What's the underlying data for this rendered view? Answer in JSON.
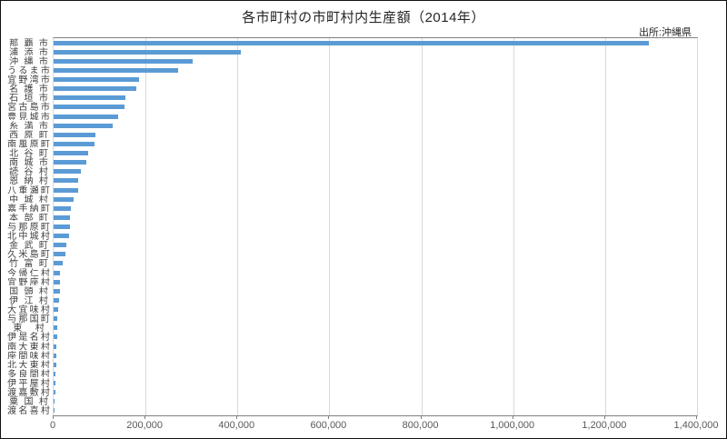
{
  "title": "各市町村の市町村内生産額（2014年）",
  "source_note": "出所:沖縄県",
  "colors": {
    "bar": "#5b9bd5",
    "gridline": "#d9d9d9",
    "axis_line": "#808080",
    "category_text": "#404040",
    "tick_text": "#595959",
    "title_text": "#262626"
  },
  "chart_data": {
    "type": "bar",
    "orientation": "horizontal",
    "title": "各市町村の市町村内生産額（2014年）",
    "xlabel": "",
    "ylabel": "",
    "xlim": [
      0,
      1400000
    ],
    "grid": "vertical-only",
    "legend": "none",
    "source": "出所:沖縄県",
    "x_ticks": [
      0,
      200000,
      400000,
      600000,
      800000,
      1000000,
      1200000,
      1400000
    ],
    "x_tick_labels": [
      "0",
      "200,000",
      "400,000",
      "600,000",
      "800,000",
      "1,000,000",
      "1,200,000",
      "1,400,000"
    ],
    "categories": [
      "那覇市",
      "浦添市",
      "沖縄市",
      "うるま市",
      "宜野湾市",
      "名護市",
      "石垣市",
      "宮古島市",
      "豊見城市",
      "糸満市",
      "西原町",
      "南風原町",
      "北谷町",
      "南城市",
      "読谷村",
      "恩納村",
      "八重瀬町",
      "中城村",
      "嘉手納町",
      "本部町",
      "与那原町",
      "北中城村",
      "金武町",
      "久米島町",
      "竹富町",
      "今帰仁村",
      "宜野座村",
      "国頭村",
      "伊江村",
      "大宜味村",
      "与那国町",
      "東村",
      "伊是名村",
      "南大東村",
      "座間味村",
      "北大東村",
      "多良間村",
      "伊平屋村",
      "渡嘉敷村",
      "粟国村",
      "渡名喜村"
    ],
    "values": [
      1295000,
      408000,
      302000,
      270000,
      185000,
      179000,
      156000,
      155000,
      140000,
      129000,
      90000,
      89000,
      75000,
      72000,
      60000,
      54000,
      53000,
      43000,
      37000,
      36000,
      35000,
      33000,
      27000,
      25000,
      19000,
      14500,
      14000,
      13000,
      11500,
      9000,
      8500,
      8000,
      7000,
      6500,
      6000,
      5000,
      4500,
      4000,
      3500,
      2500,
      1500
    ]
  }
}
